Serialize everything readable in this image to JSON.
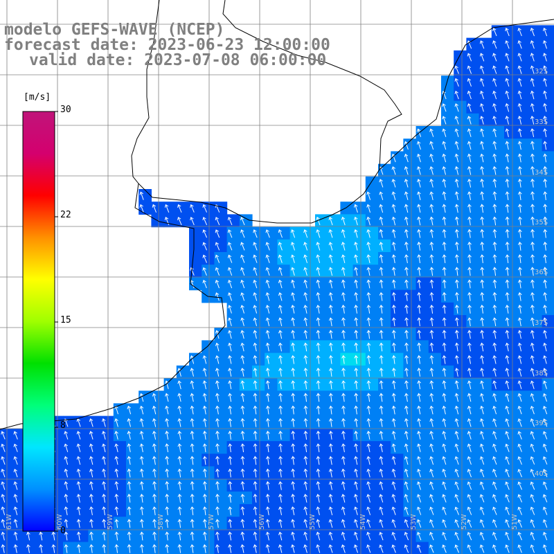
{
  "titles": {
    "model": "modelo GEFS-WAVE (NCEP)",
    "forecast": "forecast date: 2023-06-23 12:00:00",
    "valid": "valid date: 2023-07-08 06:00:00"
  },
  "colorbar": {
    "unit": "[m/s]",
    "ticks": [
      "30",
      "22",
      "15",
      "8",
      "0"
    ],
    "range": [
      0,
      30
    ],
    "colors": [
      "#0000ff",
      "#0090ff",
      "#00e6ff",
      "#00ff7a",
      "#00e000",
      "#a0ff00",
      "#ffff00",
      "#ff9000",
      "#ff0000",
      "#d4006e",
      "#c0147a"
    ]
  },
  "map": {
    "lat_labels": [
      "32S",
      "33S",
      "34S",
      "35S",
      "36S",
      "37S",
      "38S",
      "39S",
      "40S"
    ],
    "lon_labels": [
      "61W",
      "60W",
      "59W",
      "58W",
      "57W",
      "56W",
      "55W",
      "54W",
      "53W",
      "52W",
      "51W"
    ],
    "land_color": "#ffffff",
    "grid_color": "#808080",
    "arrow_color": "#ffffff",
    "field_palette": [
      "#0050f0",
      "#0080f5",
      "#00b0ff",
      "#00dcf0",
      "#00f0a0"
    ]
  }
}
